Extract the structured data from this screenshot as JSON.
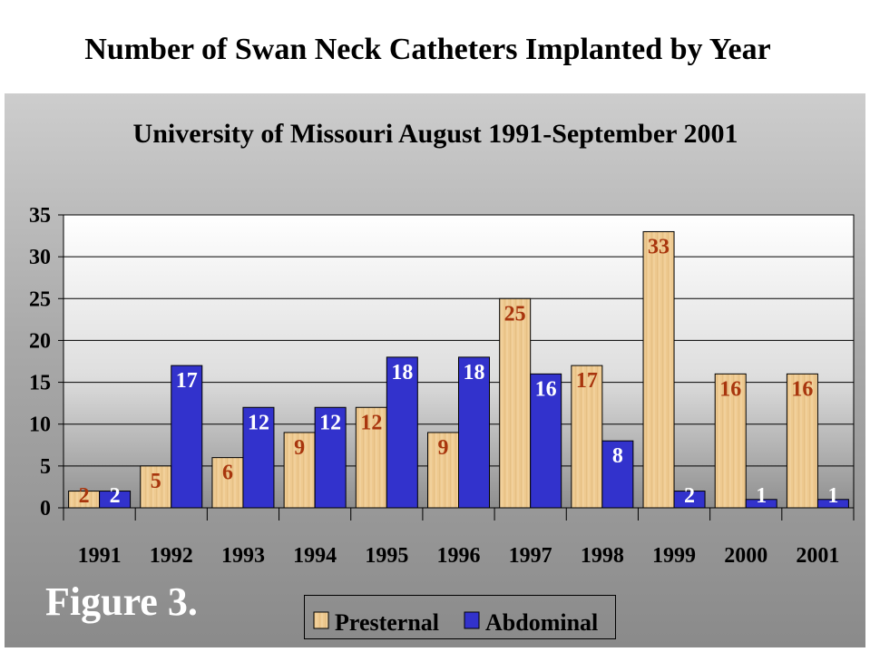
{
  "title": "Number of Swan Neck Catheters Implanted by Year",
  "figure_label": "Figure 3.",
  "colors": {
    "presternal": "#eec98f",
    "presternal_label": "#a8350d",
    "abdominal": "#3232cc",
    "abdominal_label": "#ffffff"
  },
  "chart_data": {
    "type": "bar",
    "title": "University of Missouri August 1991-September 2001",
    "categories": [
      "1991",
      "1992",
      "1993",
      "1994",
      "1995",
      "1996",
      "1997",
      "1998",
      "1999",
      "2000",
      "2001"
    ],
    "series": [
      {
        "name": "Presternal",
        "values": [
          2,
          5,
          6,
          9,
          12,
          9,
          25,
          17,
          33,
          16,
          16
        ]
      },
      {
        "name": "Abdominal",
        "values": [
          2,
          17,
          12,
          12,
          18,
          18,
          16,
          8,
          2,
          1,
          1
        ]
      }
    ],
    "ylim": [
      0,
      35
    ],
    "yticks": [
      "0",
      "5",
      "10",
      "15",
      "20",
      "25",
      "30",
      "35"
    ],
    "xlabel": "",
    "ylabel": "",
    "grid": true,
    "legend": "bottom-center"
  }
}
